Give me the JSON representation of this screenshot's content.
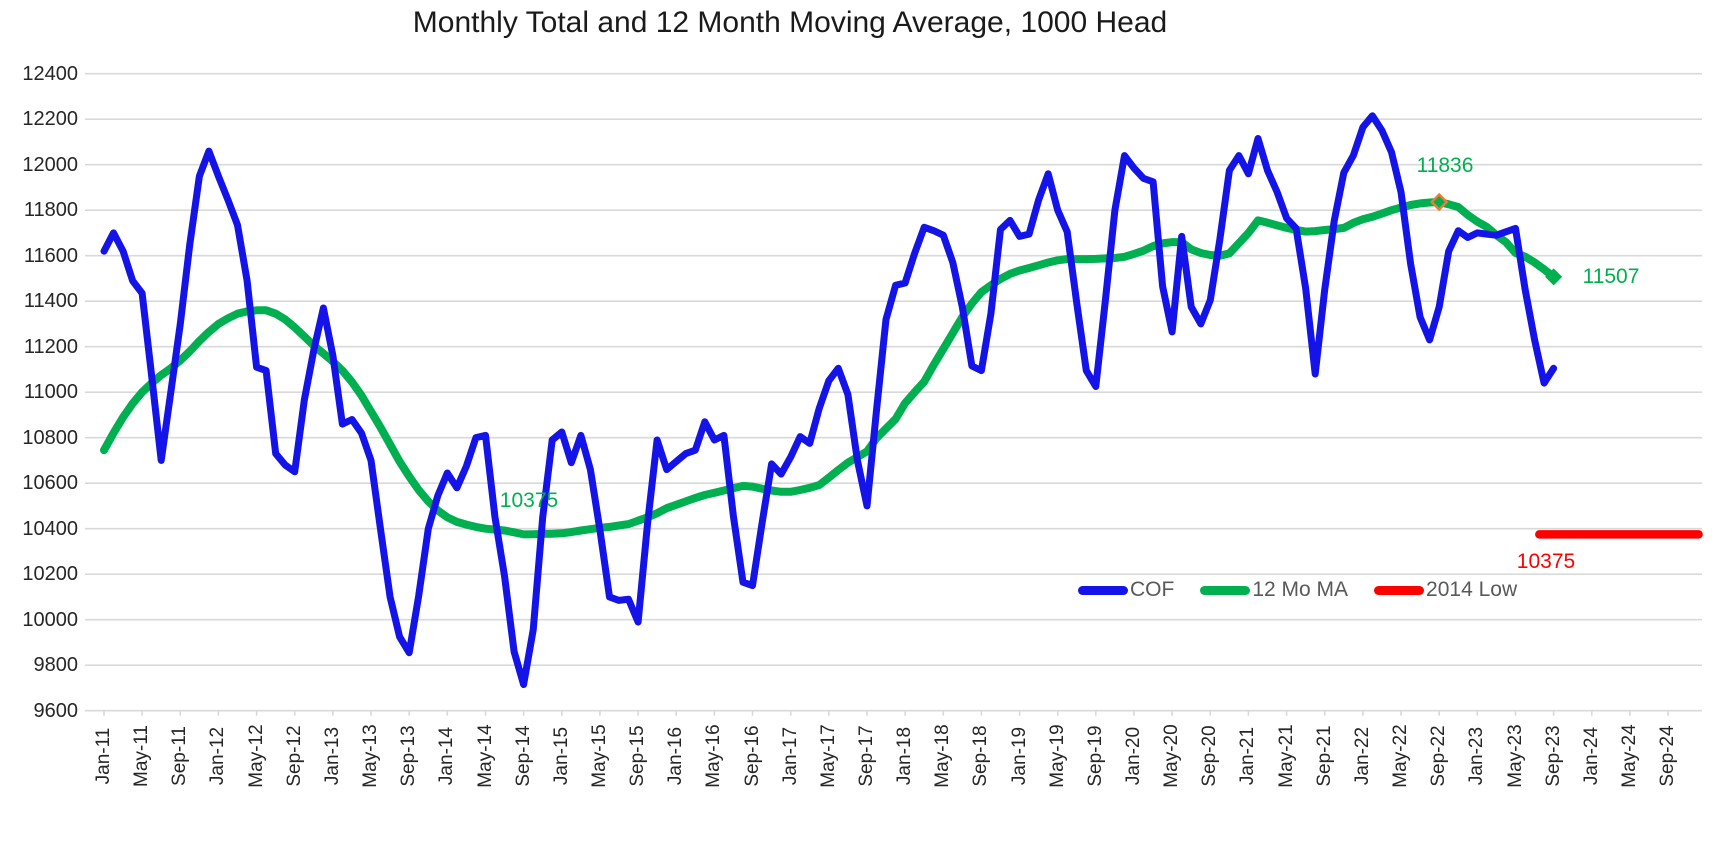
{
  "chart_data": {
    "type": "line",
    "title": "Monthly Total and 12 Month Moving Average, 1000 Head",
    "units": "1000 Head",
    "grid": true,
    "legend_position": "inside-bottom-right",
    "y_axis": {
      "min": 9600,
      "max": 12400,
      "step": 200,
      "tick_labels": [
        "12400",
        "12200",
        "12000",
        "11800",
        "11600",
        "11400",
        "11200",
        "11000",
        "10800",
        "10600",
        "10400",
        "10200",
        "10000",
        "9800",
        "9600"
      ]
    },
    "x_axis": {
      "start_label": "Jan-11",
      "end_label": "Sep-24",
      "months_per_tick": 4,
      "tick_labels": [
        "Jan-11",
        "May-11",
        "Sep-11",
        "Jan-12",
        "May-12",
        "Sep-12",
        "Jan-13",
        "May-13",
        "Sep-13",
        "Jan-14",
        "May-14",
        "Sep-14",
        "Jan-15",
        "May-15",
        "Sep-15",
        "Jan-16",
        "May-16",
        "Sep-16",
        "Jan-17",
        "May-17",
        "Sep-17",
        "Jan-18",
        "May-18",
        "Sep-18",
        "Jan-19",
        "May-19",
        "Sep-19",
        "Jan-20",
        "May-20",
        "Sep-20",
        "Jan-21",
        "May-21",
        "Sep-21",
        "Jan-22",
        "May-22",
        "Sep-22",
        "Jan-23",
        "May-23",
        "Sep-23",
        "Jan-24",
        "May-24",
        "Sep-24"
      ]
    },
    "series": [
      {
        "name": "COF",
        "color": "#1414E8",
        "start_month": "Jan-11",
        "values": [
          11620,
          11700,
          11620,
          11490,
          11435,
          11070,
          10700,
          11000,
          11300,
          11650,
          11950,
          12060,
          11950,
          11845,
          11735,
          11490,
          11110,
          11095,
          10730,
          10680,
          10650,
          10965,
          11185,
          11370,
          11160,
          10860,
          10880,
          10820,
          10700,
          10395,
          10100,
          9925,
          9855,
          10105,
          10400,
          10545,
          10645,
          10580,
          10675,
          10800,
          10810,
          10450,
          10190,
          9860,
          9715,
          9955,
          10450,
          10790,
          10825,
          10690,
          10810,
          10660,
          10395,
          10100,
          10085,
          10090,
          9990,
          10425,
          10790,
          10660,
          10695,
          10730,
          10745,
          10870,
          10790,
          10810,
          10455,
          10165,
          10150,
          10425,
          10685,
          10640,
          10715,
          10805,
          10775,
          10930,
          11050,
          11105,
          10990,
          10700,
          10500,
          10920,
          11320,
          11470,
          11480,
          11610,
          11725,
          11710,
          11690,
          11570,
          11375,
          11115,
          11095,
          11345,
          11715,
          11755,
          11685,
          11695,
          11845,
          11960,
          11800,
          11705,
          11390,
          11095,
          11025,
          11405,
          11800,
          12040,
          11985,
          11940,
          11925,
          11465,
          11265,
          11685,
          11375,
          11300,
          11405,
          11670,
          11975,
          12040,
          11960,
          12115,
          11975,
          11880,
          11765,
          11720,
          11455,
          11080,
          11450,
          11755,
          11965,
          12040,
          12165,
          12215,
          12150,
          12055,
          11880,
          11565,
          11330,
          11230,
          11375,
          11620,
          11710,
          11680,
          11700,
          11695,
          11690,
          11705,
          11720,
          11455,
          11230,
          11040,
          11105
        ]
      },
      {
        "name": "12 Mo MA",
        "color": "#00B050",
        "start_month": "Jan-11",
        "values": [
          10745,
          10820,
          10890,
          10950,
          11000,
          11040,
          11075,
          11105,
          11140,
          11180,
          11225,
          11265,
          11300,
          11325,
          11345,
          11355,
          11360,
          11360,
          11345,
          11320,
          11285,
          11245,
          11205,
          11170,
          11135,
          11095,
          11045,
          10985,
          10915,
          10845,
          10770,
          10695,
          10630,
          10570,
          10520,
          10480,
          10450,
          10430,
          10418,
          10408,
          10400,
          10396,
          10392,
          10384,
          10375,
          10376,
          10377,
          10378,
          10380,
          10385,
          10392,
          10398,
          10404,
          10408,
          10414,
          10420,
          10435,
          10450,
          10468,
          10490,
          10505,
          10520,
          10535,
          10548,
          10558,
          10568,
          10578,
          10588,
          10585,
          10576,
          10568,
          10562,
          10562,
          10570,
          10580,
          10592,
          10624,
          10658,
          10690,
          10715,
          10740,
          10798,
          10840,
          10882,
          10952,
          11000,
          11046,
          11120,
          11190,
          11260,
          11330,
          11390,
          11440,
          11470,
          11498,
          11520,
          11535,
          11546,
          11558,
          11570,
          11580,
          11585,
          11585,
          11585,
          11586,
          11588,
          11590,
          11595,
          11608,
          11622,
          11642,
          11654,
          11660,
          11660,
          11628,
          11612,
          11603,
          11600,
          11610,
          11655,
          11700,
          11755,
          11745,
          11733,
          11722,
          11713,
          11706,
          11708,
          11713,
          11717,
          11722,
          11744,
          11760,
          11771,
          11785,
          11800,
          11812,
          11823,
          11830,
          11834,
          11836,
          11826,
          11814,
          11779,
          11750,
          11726,
          11690,
          11660,
          11612,
          11596,
          11570,
          11540,
          11507
        ],
        "markers": [
          {
            "month": "Sep-22",
            "index": 140,
            "value": 11836,
            "outlined": true
          },
          {
            "month": "Sep-23",
            "index": 152,
            "value": 11507,
            "outlined": false
          }
        ]
      },
      {
        "name": "2014 Low",
        "color": "#FF0000",
        "shape": "horizontal-segment",
        "value": 10375,
        "start_month_index": 150.5,
        "end_month_index": 167.2
      }
    ],
    "annotations": [
      {
        "id": "ma-min-label",
        "text": "10375",
        "color": "#00B050"
      },
      {
        "id": "ma-peak-label",
        "text": "11836",
        "color": "#00B050"
      },
      {
        "id": "ma-latest-label",
        "text": "11507",
        "color": "#00B050"
      },
      {
        "id": "low-2014-label",
        "text": "10375",
        "color": "#FF0000"
      }
    ],
    "legend": {
      "items": [
        {
          "label": "COF",
          "color": "#1414E8"
        },
        {
          "label": "12 Mo MA",
          "color": "#00B050"
        },
        {
          "label": "2014 Low",
          "color": "#FF0000"
        }
      ]
    }
  }
}
